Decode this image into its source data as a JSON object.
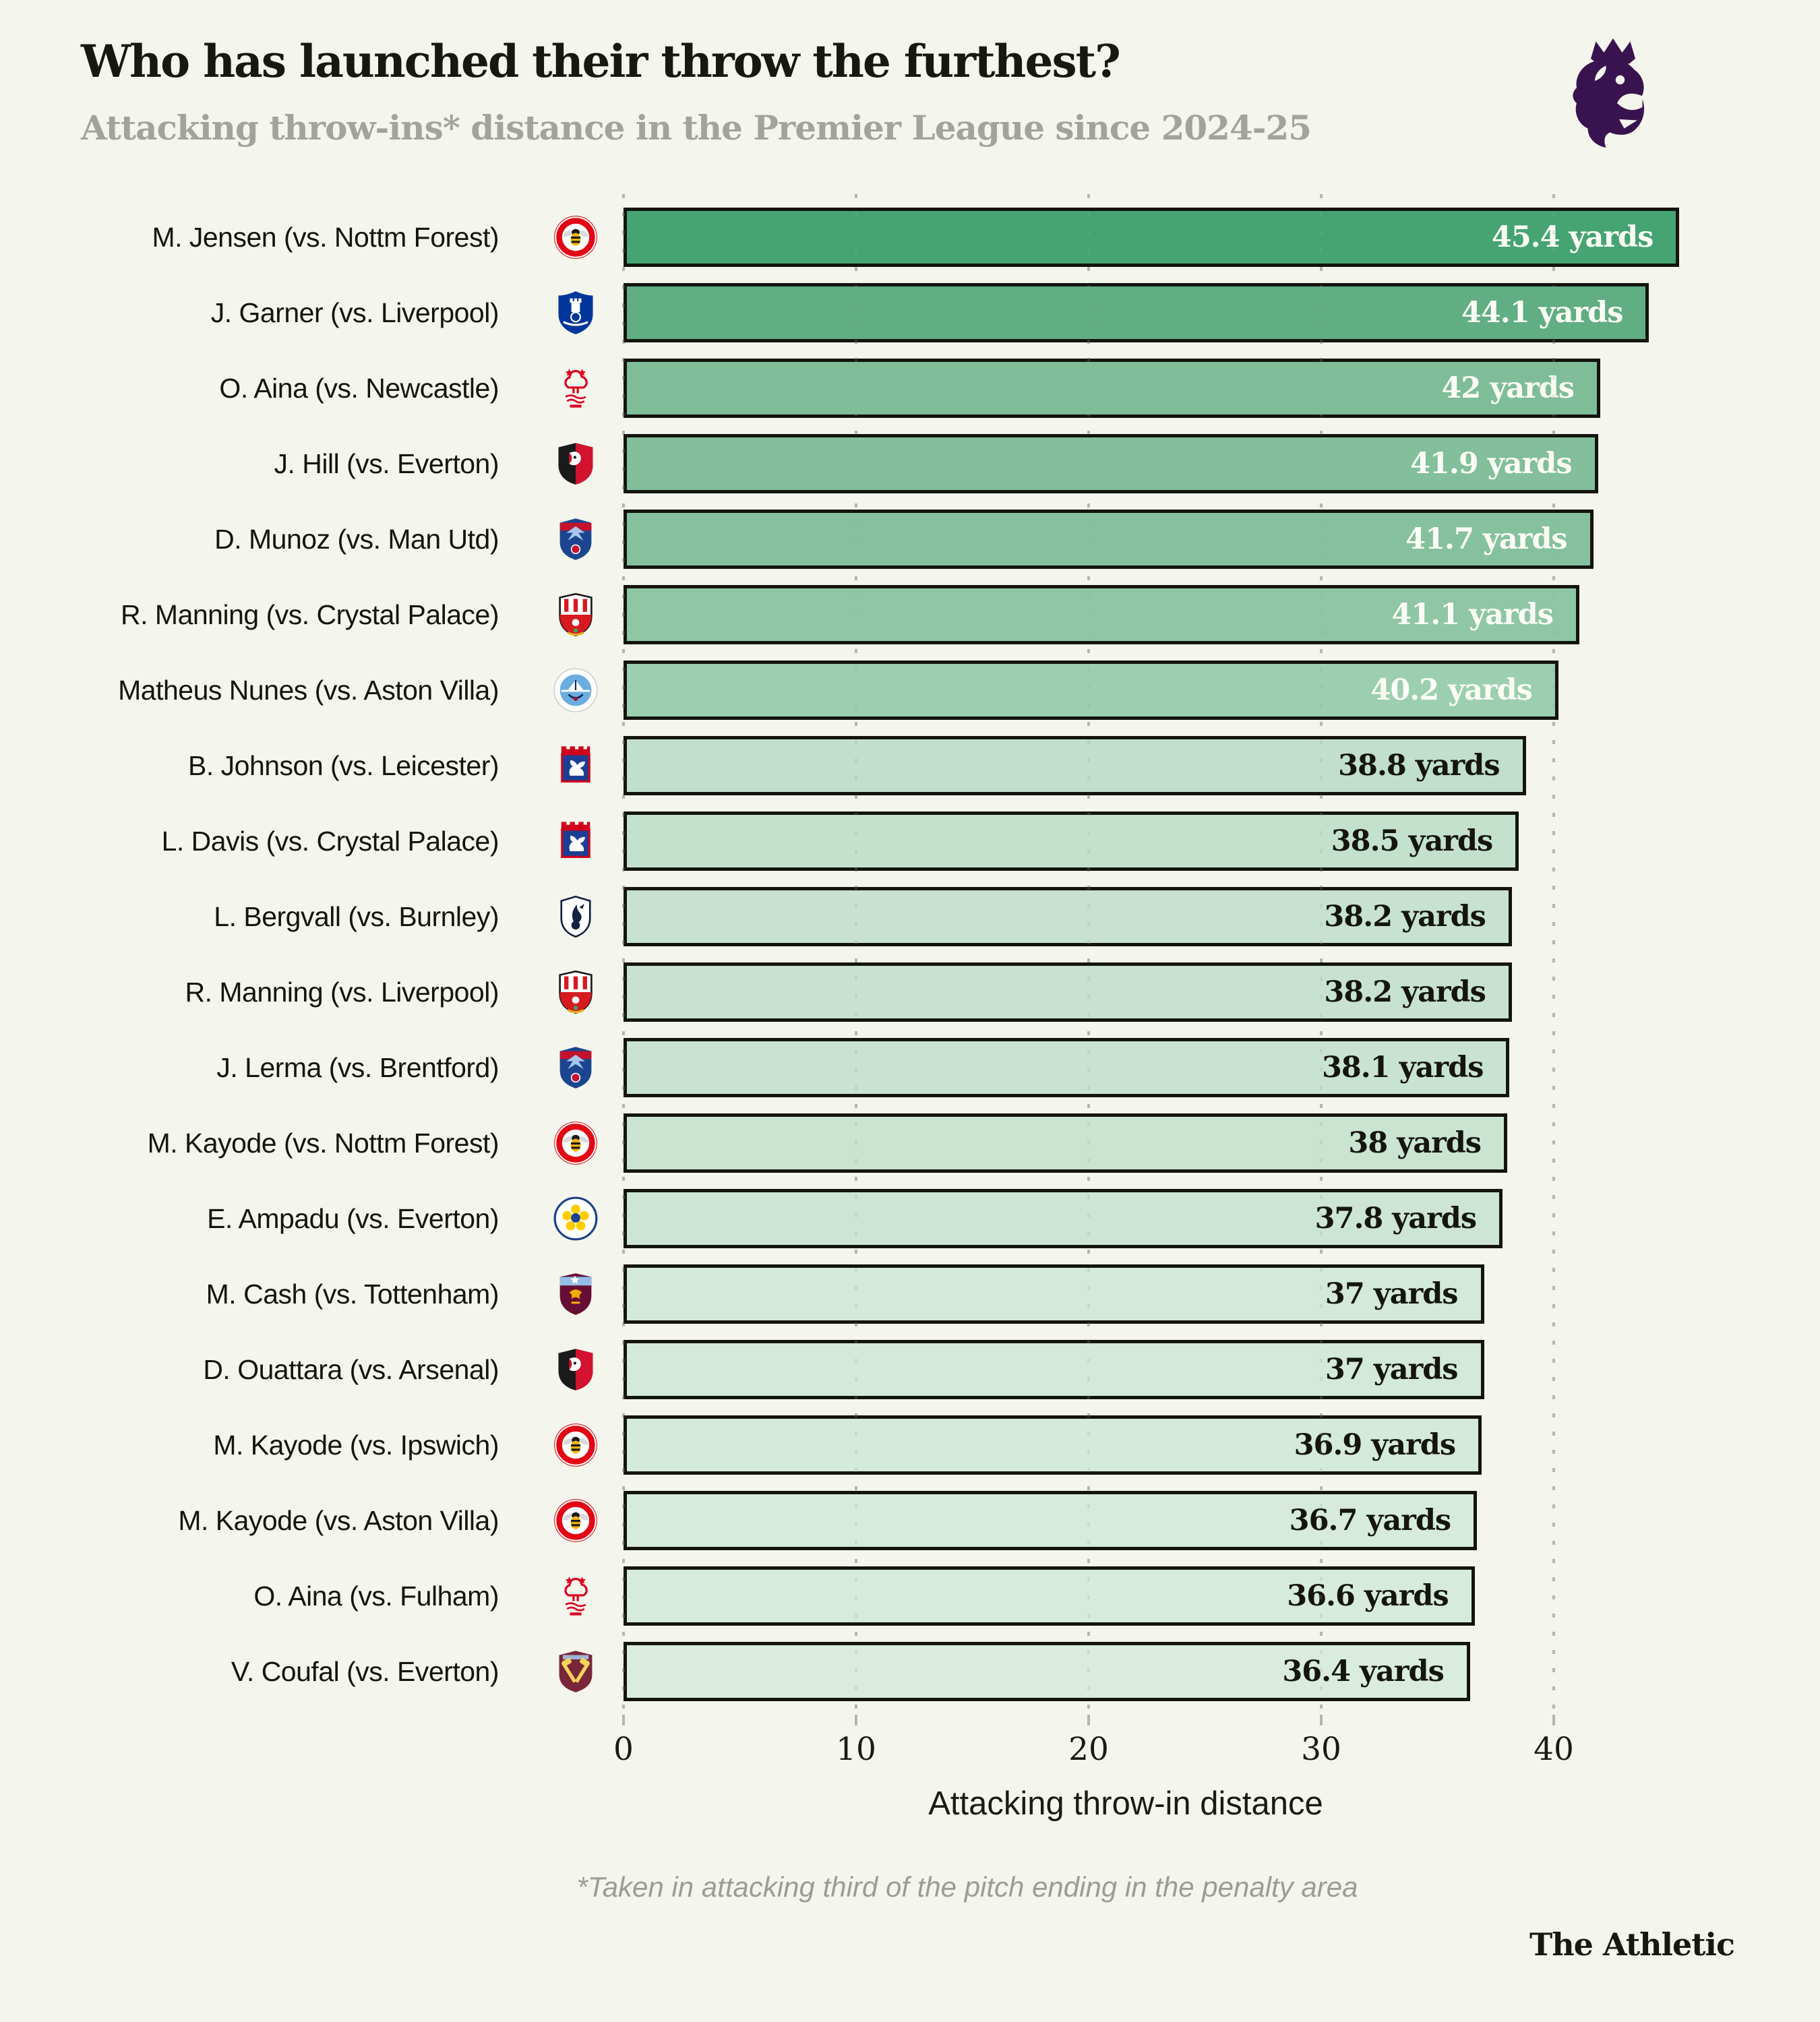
{
  "header": {
    "logo_icon": "premier-league-crest"
  },
  "chart_data": {
    "type": "bar",
    "orientation": "horizontal",
    "title": "Who has launched their throw the furthest?",
    "subtitle": "Attacking throw-ins* distance in the Premier League since 2024-25",
    "xlabel": "Attacking throw-in distance",
    "unit": "yards",
    "x_ticks": [
      0,
      10,
      20,
      30,
      40
    ],
    "xlim": [
      0,
      50
    ],
    "grid": "dotted-vertical",
    "legend": "none",
    "rows": [
      {
        "label": "M. Jensen (vs. Nottm Forest)",
        "badge": "brentford",
        "value": 45.4,
        "value_label": "45.4 yards",
        "bar_color": "#46a473",
        "value_text_color": "#fdfdf7"
      },
      {
        "label": "J. Garner (vs. Liverpool)",
        "badge": "everton",
        "value": 44.1,
        "value_label": "44.1 yards",
        "bar_color": "#60ae82",
        "value_text_color": "#fdfdf7"
      },
      {
        "label": "O. Aina (vs. Newcastle)",
        "badge": "nottm-forest",
        "value": 42,
        "value_label": "42 yards",
        "bar_color": "#7fbd98",
        "value_text_color": "#fdfdf7"
      },
      {
        "label": "J. Hill (vs. Everton)",
        "badge": "bournemouth",
        "value": 41.9,
        "value_label": "41.9 yards",
        "bar_color": "#82bf9a",
        "value_text_color": "#fdfdf7"
      },
      {
        "label": "D. Munoz (vs. Man Utd)",
        "badge": "crystal-palace",
        "value": 41.7,
        "value_label": "41.7 yards",
        "bar_color": "#85c19d",
        "value_text_color": "#fdfdf7"
      },
      {
        "label": "R. Manning (vs. Crystal Palace)",
        "badge": "southampton",
        "value": 41.1,
        "value_label": "41.1 yards",
        "bar_color": "#8fc6a4",
        "value_text_color": "#fdfdf7"
      },
      {
        "label": "Matheus Nunes (vs. Aston Villa)",
        "badge": "man-city",
        "value": 40.2,
        "value_label": "40.2 yards",
        "bar_color": "#9ccfb0",
        "value_text_color": "#fdfdf7"
      },
      {
        "label": "B. Johnson (vs. Leicester)",
        "badge": "ipswich",
        "value": 38.8,
        "value_label": "38.8 yards",
        "bar_color": "#c1dfcc",
        "value_text_color": "#15150f"
      },
      {
        "label": "L. Davis (vs. Crystal Palace)",
        "badge": "ipswich",
        "value": 38.5,
        "value_label": "38.5 yards",
        "bar_color": "#c4e1ce",
        "value_text_color": "#15150f"
      },
      {
        "label": "L. Bergvall (vs. Burnley)",
        "badge": "tottenham",
        "value": 38.2,
        "value_label": "38.2 yards",
        "bar_color": "#c7e2d0",
        "value_text_color": "#15150f"
      },
      {
        "label": "R. Manning (vs. Liverpool)",
        "badge": "southampton",
        "value": 38.2,
        "value_label": "38.2 yards",
        "bar_color": "#c7e2d0",
        "value_text_color": "#15150f"
      },
      {
        "label": "J. Lerma (vs. Brentford)",
        "badge": "crystal-palace",
        "value": 38.1,
        "value_label": "38.1 yards",
        "bar_color": "#c9e3d2",
        "value_text_color": "#15150f"
      },
      {
        "label": "M. Kayode (vs. Nottm Forest)",
        "badge": "brentford",
        "value": 38,
        "value_label": "38 yards",
        "bar_color": "#cae4d2",
        "value_text_color": "#15150f"
      },
      {
        "label": "E. Ampadu (vs. Everton)",
        "badge": "leeds",
        "value": 37.8,
        "value_label": "37.8 yards",
        "bar_color": "#cce5d4",
        "value_text_color": "#15150f"
      },
      {
        "label": "M. Cash (vs. Tottenham)",
        "badge": "aston-villa",
        "value": 37,
        "value_label": "37 yards",
        "bar_color": "#d3e9d9",
        "value_text_color": "#15150f"
      },
      {
        "label": "D. Ouattara (vs. Arsenal)",
        "badge": "bournemouth",
        "value": 37,
        "value_label": "37 yards",
        "bar_color": "#d3e9d9",
        "value_text_color": "#15150f"
      },
      {
        "label": "M. Kayode (vs. Ipswich)",
        "badge": "brentford",
        "value": 36.9,
        "value_label": "36.9 yards",
        "bar_color": "#d4eada",
        "value_text_color": "#15150f"
      },
      {
        "label": "M. Kayode (vs. Aston Villa)",
        "badge": "brentford",
        "value": 36.7,
        "value_label": "36.7 yards",
        "bar_color": "#d6ebdc",
        "value_text_color": "#15150f"
      },
      {
        "label": "O. Aina (vs. Fulham)",
        "badge": "nottm-forest",
        "value": 36.6,
        "value_label": "36.6 yards",
        "bar_color": "#d7ebdd",
        "value_text_color": "#15150f"
      },
      {
        "label": "V. Coufal (vs. Everton)",
        "badge": "west-ham",
        "value": 36.4,
        "value_label": "36.4 yards",
        "bar_color": "#d9ecde",
        "value_text_color": "#15150f"
      }
    ]
  },
  "footer": {
    "footnote": "*Taken in attacking third of the pitch ending in the penalty area",
    "brand": "The Athletic"
  }
}
